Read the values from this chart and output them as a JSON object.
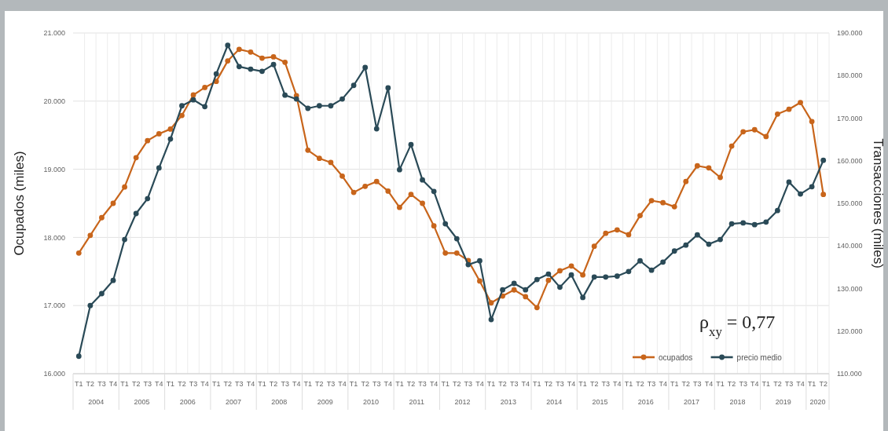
{
  "chart_data": {
    "type": "line",
    "ylabel": "Ocupados (miles)",
    "y2label": "Transacciones (miles)",
    "categories": [
      "T1",
      "T2",
      "T3",
      "T4",
      "T1",
      "T2",
      "T3",
      "T4",
      "T1",
      "T2",
      "T3",
      "T4",
      "T1",
      "T2",
      "T3",
      "T4",
      "T1",
      "T2",
      "T3",
      "T4",
      "T1",
      "T2",
      "T3",
      "T4",
      "T1",
      "T2",
      "T3",
      "T4",
      "T1",
      "T2",
      "T3",
      "T4",
      "T1",
      "T2",
      "T3",
      "T4",
      "T1",
      "T2",
      "T3",
      "T4",
      "T1",
      "T2",
      "T3",
      "T4",
      "T1",
      "T2",
      "T3",
      "T4",
      "T1",
      "T2",
      "T3",
      "T4",
      "T1",
      "T2",
      "T3",
      "T4",
      "T1",
      "T2",
      "T3",
      "T4",
      "T1",
      "T2",
      "T3",
      "T4",
      "T1",
      "T2"
    ],
    "series": [
      {
        "name": "ocupados",
        "color": "#c8651b",
        "values": [
          17770,
          18030,
          18290,
          18500,
          18740,
          19170,
          19420,
          19520,
          19590,
          19790,
          20090,
          20200,
          20290,
          20590,
          20760,
          20720,
          20630,
          20650,
          20570,
          20080,
          19280,
          19160,
          19100,
          18900,
          18660,
          18750,
          18820,
          18680,
          18440,
          18630,
          18500,
          18170,
          17770,
          17770,
          17660,
          17360,
          17040,
          17140,
          17230,
          17130,
          16970,
          17370,
          17510,
          17580,
          17450,
          17870,
          18060,
          18110,
          18040,
          18320,
          18540,
          18510,
          18450,
          18820,
          19050,
          19020,
          18880,
          19340,
          19550,
          19580,
          19480,
          19810,
          19880,
          19980,
          19700,
          18630
        ]
      },
      {
        "name": "precio medio",
        "color": "#2a4a57",
        "axis": "y2",
        "values": [
          114100,
          126000,
          128800,
          131900,
          141500,
          147600,
          151100,
          158300,
          165100,
          172900,
          174300,
          172700,
          180400,
          187100,
          182100,
          181500,
          181000,
          182600,
          175400,
          174500,
          172300,
          172900,
          172900,
          174500,
          177700,
          181900,
          167500,
          177100,
          157900,
          163800,
          155500,
          152800,
          145200,
          141700,
          135600,
          136500,
          122700,
          129700,
          131200,
          129700,
          132100,
          133400,
          130300,
          133200,
          127900,
          132700,
          132700,
          132900,
          134000,
          136500,
          134300,
          136200,
          138800,
          140200,
          142600,
          140400,
          141500,
          145200,
          145400,
          145000,
          145600,
          148300,
          155000,
          152200,
          153900,
          160100
        ]
      }
    ],
    "ylim": [
      16000,
      21000
    ],
    "yticks": [
      {
        "value": 16000,
        "label": "16.000"
      },
      {
        "value": 17000,
        "label": "17.000"
      },
      {
        "value": 18000,
        "label": "18.000"
      },
      {
        "value": 19000,
        "label": "19.000"
      },
      {
        "value": 20000,
        "label": "20.000"
      },
      {
        "value": 21000,
        "label": "21.000"
      }
    ],
    "y2lim": [
      110000,
      190000
    ],
    "y2ticks": [
      {
        "value": 110000,
        "label": "110.000"
      },
      {
        "value": 120000,
        "label": "120.000"
      },
      {
        "value": 130000,
        "label": "130.000"
      },
      {
        "value": 140000,
        "label": "140.000"
      },
      {
        "value": 150000,
        "label": "150.000"
      },
      {
        "value": 160000,
        "label": "160.000"
      },
      {
        "value": 170000,
        "label": "170.000"
      },
      {
        "value": 180000,
        "label": "180.000"
      },
      {
        "value": 190000,
        "label": "190.000"
      }
    ],
    "annotations": [
      "ρ$_{xy}$ = 0,77",
      "2004",
      "2005",
      "2006",
      "2007",
      "2008",
      "2009",
      "2010",
      "2011",
      "2012",
      "2013",
      "2014",
      "2015",
      "2016",
      "2017",
      "2018",
      "2019",
      "2020"
    ],
    "grid": true,
    "legend": "bottom right",
    "marker": "circle",
    "line_style": "solid"
  }
}
